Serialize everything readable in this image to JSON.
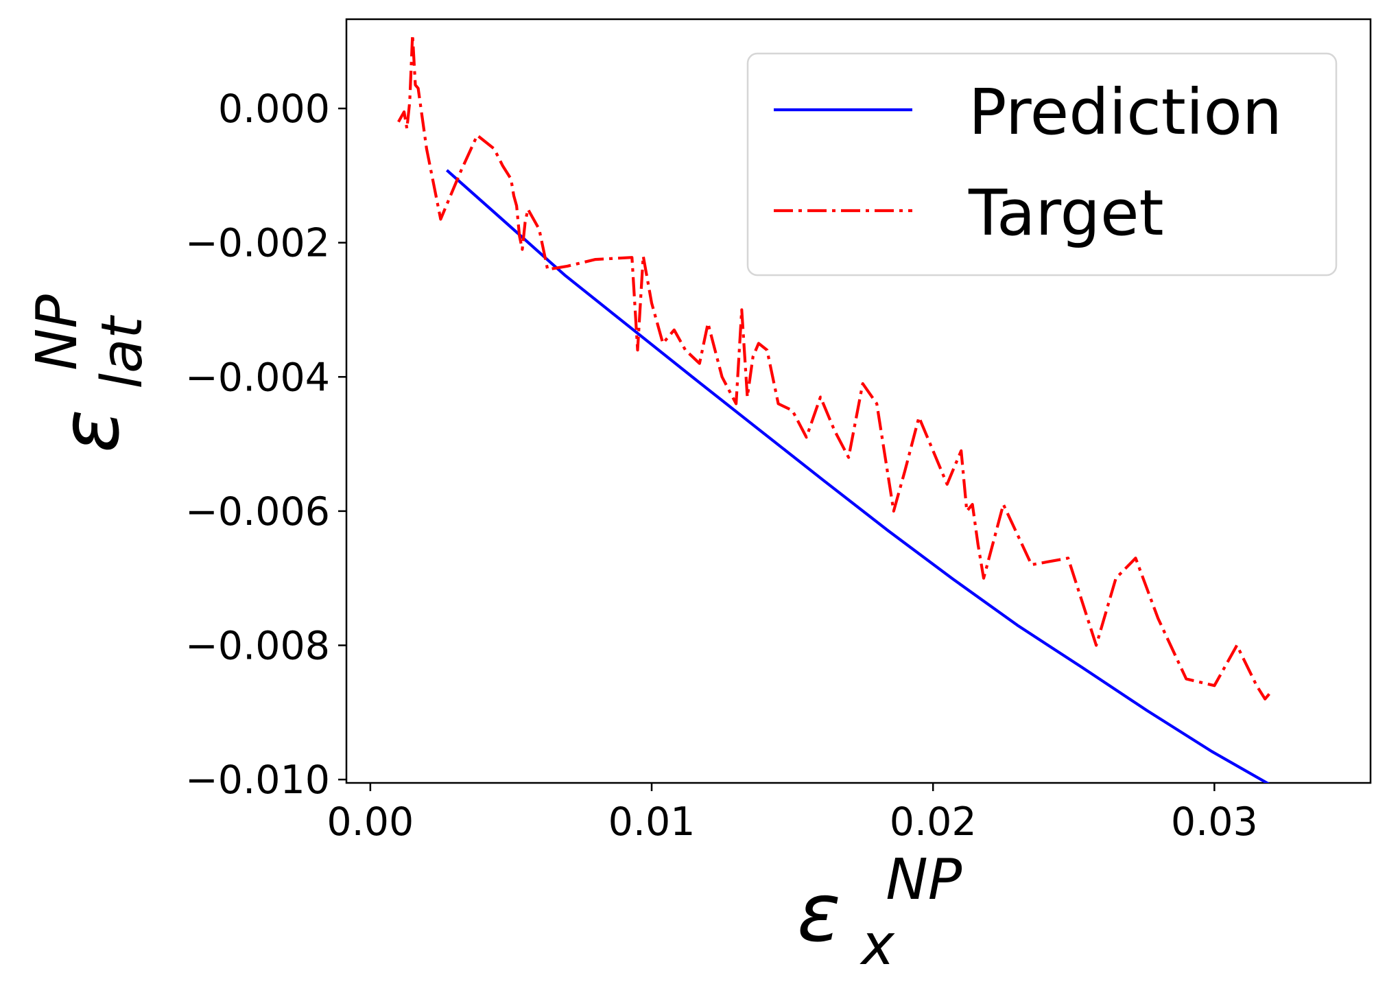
{
  "chart_data": {
    "type": "line",
    "xlabel": {
      "symbol": "ε",
      "sub": "x",
      "sup": "NP"
    },
    "ylabel": {
      "symbol": "ε",
      "sub": "lat",
      "sup": "NP"
    },
    "xlim": [
      -0.00085,
      0.03555
    ],
    "ylim": [
      -0.01005,
      0.00133
    ],
    "xticks": [
      0.0,
      0.01,
      0.02,
      0.03
    ],
    "xtick_labels": [
      "0.00",
      "0.01",
      "0.02",
      "0.03"
    ],
    "yticks": [
      0.0,
      -0.002,
      -0.004,
      -0.006,
      -0.008,
      -0.01
    ],
    "ytick_labels": [
      "0.000",
      "−0.002",
      "−0.004",
      "−0.006",
      "−0.008",
      "−0.010"
    ],
    "grid": false,
    "legend": {
      "position": "upper-right",
      "entries": [
        "Prediction",
        "Target"
      ]
    },
    "colors": {
      "prediction": "#0000ff",
      "target": "#ff0000"
    },
    "series": [
      {
        "name": "Prediction",
        "style": "solid",
        "x": [
          0.00272,
          0.0046,
          0.0069,
          0.0092,
          0.0115,
          0.0138,
          0.0161,
          0.0184,
          0.0207,
          0.023,
          0.0253,
          0.0276,
          0.0299,
          0.0322,
          0.0339
        ],
        "y": [
          -0.00092,
          -0.00162,
          -0.00248,
          -0.00325,
          -0.00402,
          -0.00478,
          -0.00554,
          -0.00629,
          -0.00701,
          -0.0077,
          -0.00833,
          -0.00897,
          -0.00958,
          -0.01013,
          -0.01053
        ]
      },
      {
        "name": "Target",
        "style": "dashdot",
        "x": [
          0.001,
          0.0012,
          0.0013,
          0.0014,
          0.0015,
          0.0016,
          0.0017,
          0.002,
          0.0025,
          0.0032,
          0.0038,
          0.0044,
          0.0047,
          0.005,
          0.0051,
          0.0052,
          0.0053,
          0.0054,
          0.0055,
          0.0056,
          0.006,
          0.0063,
          0.007,
          0.008,
          0.0093,
          0.0095,
          0.0097,
          0.01,
          0.0104,
          0.0108,
          0.0112,
          0.0117,
          0.012,
          0.0125,
          0.013,
          0.0132,
          0.0134,
          0.0136,
          0.0138,
          0.0141,
          0.0145,
          0.015,
          0.0155,
          0.016,
          0.0165,
          0.017,
          0.0175,
          0.018,
          0.0186,
          0.019,
          0.0195,
          0.02,
          0.0205,
          0.021,
          0.0212,
          0.0214,
          0.0216,
          0.0218,
          0.0225,
          0.0235,
          0.0248,
          0.0258,
          0.0265,
          0.0272,
          0.028,
          0.029,
          0.03,
          0.0308,
          0.0315,
          0.0318,
          0.032
        ],
        "y": [
          -0.0002,
          -5e-05,
          -0.0003,
          0.0001,
          0.0011,
          0.00035,
          0.0003,
          -0.0006,
          -0.00165,
          -0.00095,
          -0.0004,
          -0.0006,
          -0.00085,
          -0.00105,
          -0.0013,
          -0.00145,
          -0.0019,
          -0.0021,
          -0.0017,
          -0.0015,
          -0.0018,
          -0.0024,
          -0.00235,
          -0.00225,
          -0.00222,
          -0.0036,
          -0.0022,
          -0.0029,
          -0.0035,
          -0.0033,
          -0.0036,
          -0.0038,
          -0.0032,
          -0.004,
          -0.0044,
          -0.003,
          -0.0043,
          -0.0037,
          -0.0035,
          -0.0036,
          -0.0044,
          -0.0045,
          -0.0049,
          -0.0043,
          -0.0048,
          -0.0052,
          -0.0041,
          -0.0044,
          -0.006,
          -0.0054,
          -0.0046,
          -0.0051,
          -0.0056,
          -0.0051,
          -0.006,
          -0.0059,
          -0.0065,
          -0.007,
          -0.0059,
          -0.0068,
          -0.0067,
          -0.008,
          -0.007,
          -0.0067,
          -0.0076,
          -0.0085,
          -0.0086,
          -0.008,
          -0.0086,
          -0.0088,
          -0.0087
        ]
      }
    ]
  }
}
